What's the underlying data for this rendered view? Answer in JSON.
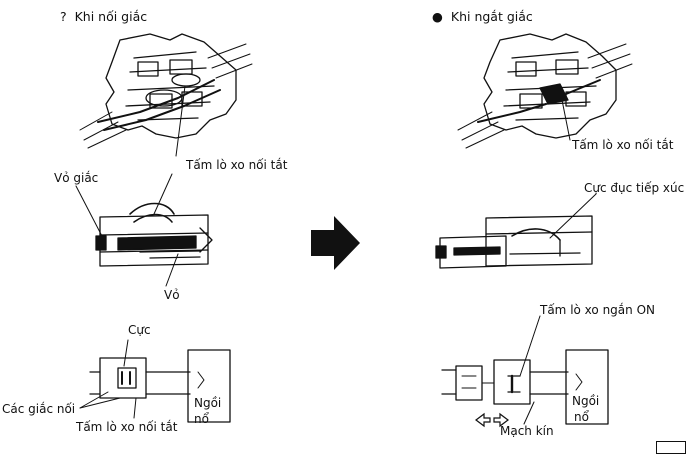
{
  "left": {
    "bullet": "?",
    "title": "Khi nối giắc",
    "labels": {
      "spring_top": "Tấm lò xo nối tắt",
      "housing": "Vỏ giắc",
      "shell": "Vỏ",
      "terminal": "Cực",
      "connectors": "Các giắc nối",
      "spring_bottom": "Tấm lò xo nối tắt",
      "ecu_line1": "Ngồi",
      "ecu_line2": "nổ"
    }
  },
  "right": {
    "bullet": "●",
    "title": "Khi ngắt giắc",
    "labels": {
      "spring_top": "Tấm lò xo nối tắt",
      "contact": "Cực đục tiếp xúc",
      "spring_on": "Tấm lò xo ngắn ON",
      "closed_circuit": "Mạch kín",
      "ecu_line1": "Ngồi",
      "ecu_line2": "nổ"
    }
  },
  "arrow": {
    "direction": "right"
  },
  "icons": [
    "right-arrow-icon",
    "left-right-arrows-icon",
    "page-badge-icon"
  ],
  "colors": {
    "ink": "#111111",
    "background": "#ffffff"
  }
}
